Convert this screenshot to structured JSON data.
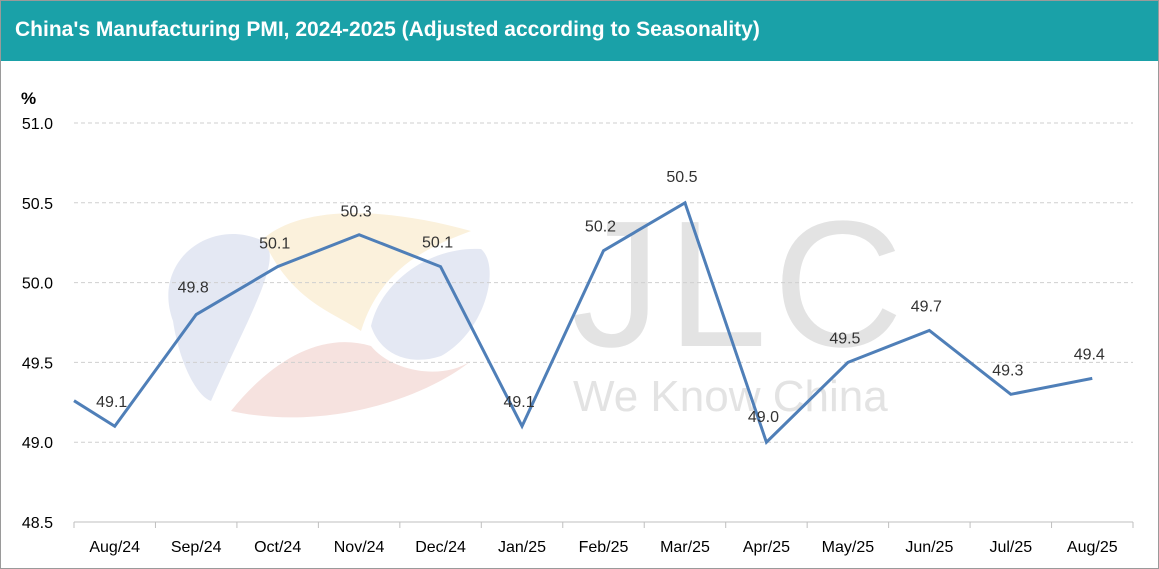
{
  "header": {
    "title": "China's Manufacturing PMI, 2024-2025 (Adjusted according to Seasonality)"
  },
  "watermark": {
    "logo": "JLC",
    "tagline": "We Know China"
  },
  "colors": {
    "header_bg": "#1aa1a8",
    "line": "#4f7fb8",
    "grid": "#cfcfcf"
  },
  "chart_data": {
    "type": "line",
    "title": "China's Manufacturing PMI, 2024-2025 (Adjusted according to Seasonality)",
    "ylabel": "%",
    "xlabel": "",
    "ylim": [
      48.5,
      51.0
    ],
    "yticks": [
      "48.5",
      "49.0",
      "49.5",
      "50.0",
      "50.5",
      "51.0"
    ],
    "grid": "horizontal-dashed",
    "categories": [
      "Aug/24",
      "Sep/24",
      "Oct/24",
      "Nov/24",
      "Dec/24",
      "Jan/25",
      "Feb/25",
      "Mar/25",
      "Apr/25",
      "May/25",
      "Jun/25",
      "Jul/25",
      "Aug/25"
    ],
    "start_value": 49.26,
    "values": [
      49.1,
      49.8,
      50.1,
      50.3,
      50.1,
      49.1,
      50.2,
      50.5,
      49.0,
      49.5,
      49.7,
      49.3,
      49.4
    ],
    "value_labels": [
      "49.1",
      "49.8",
      "50.1",
      "50.3",
      "50.1",
      "49.1",
      "50.2",
      "50.5",
      "49.0",
      "49.5",
      "49.7",
      "49.3",
      "49.4"
    ]
  }
}
